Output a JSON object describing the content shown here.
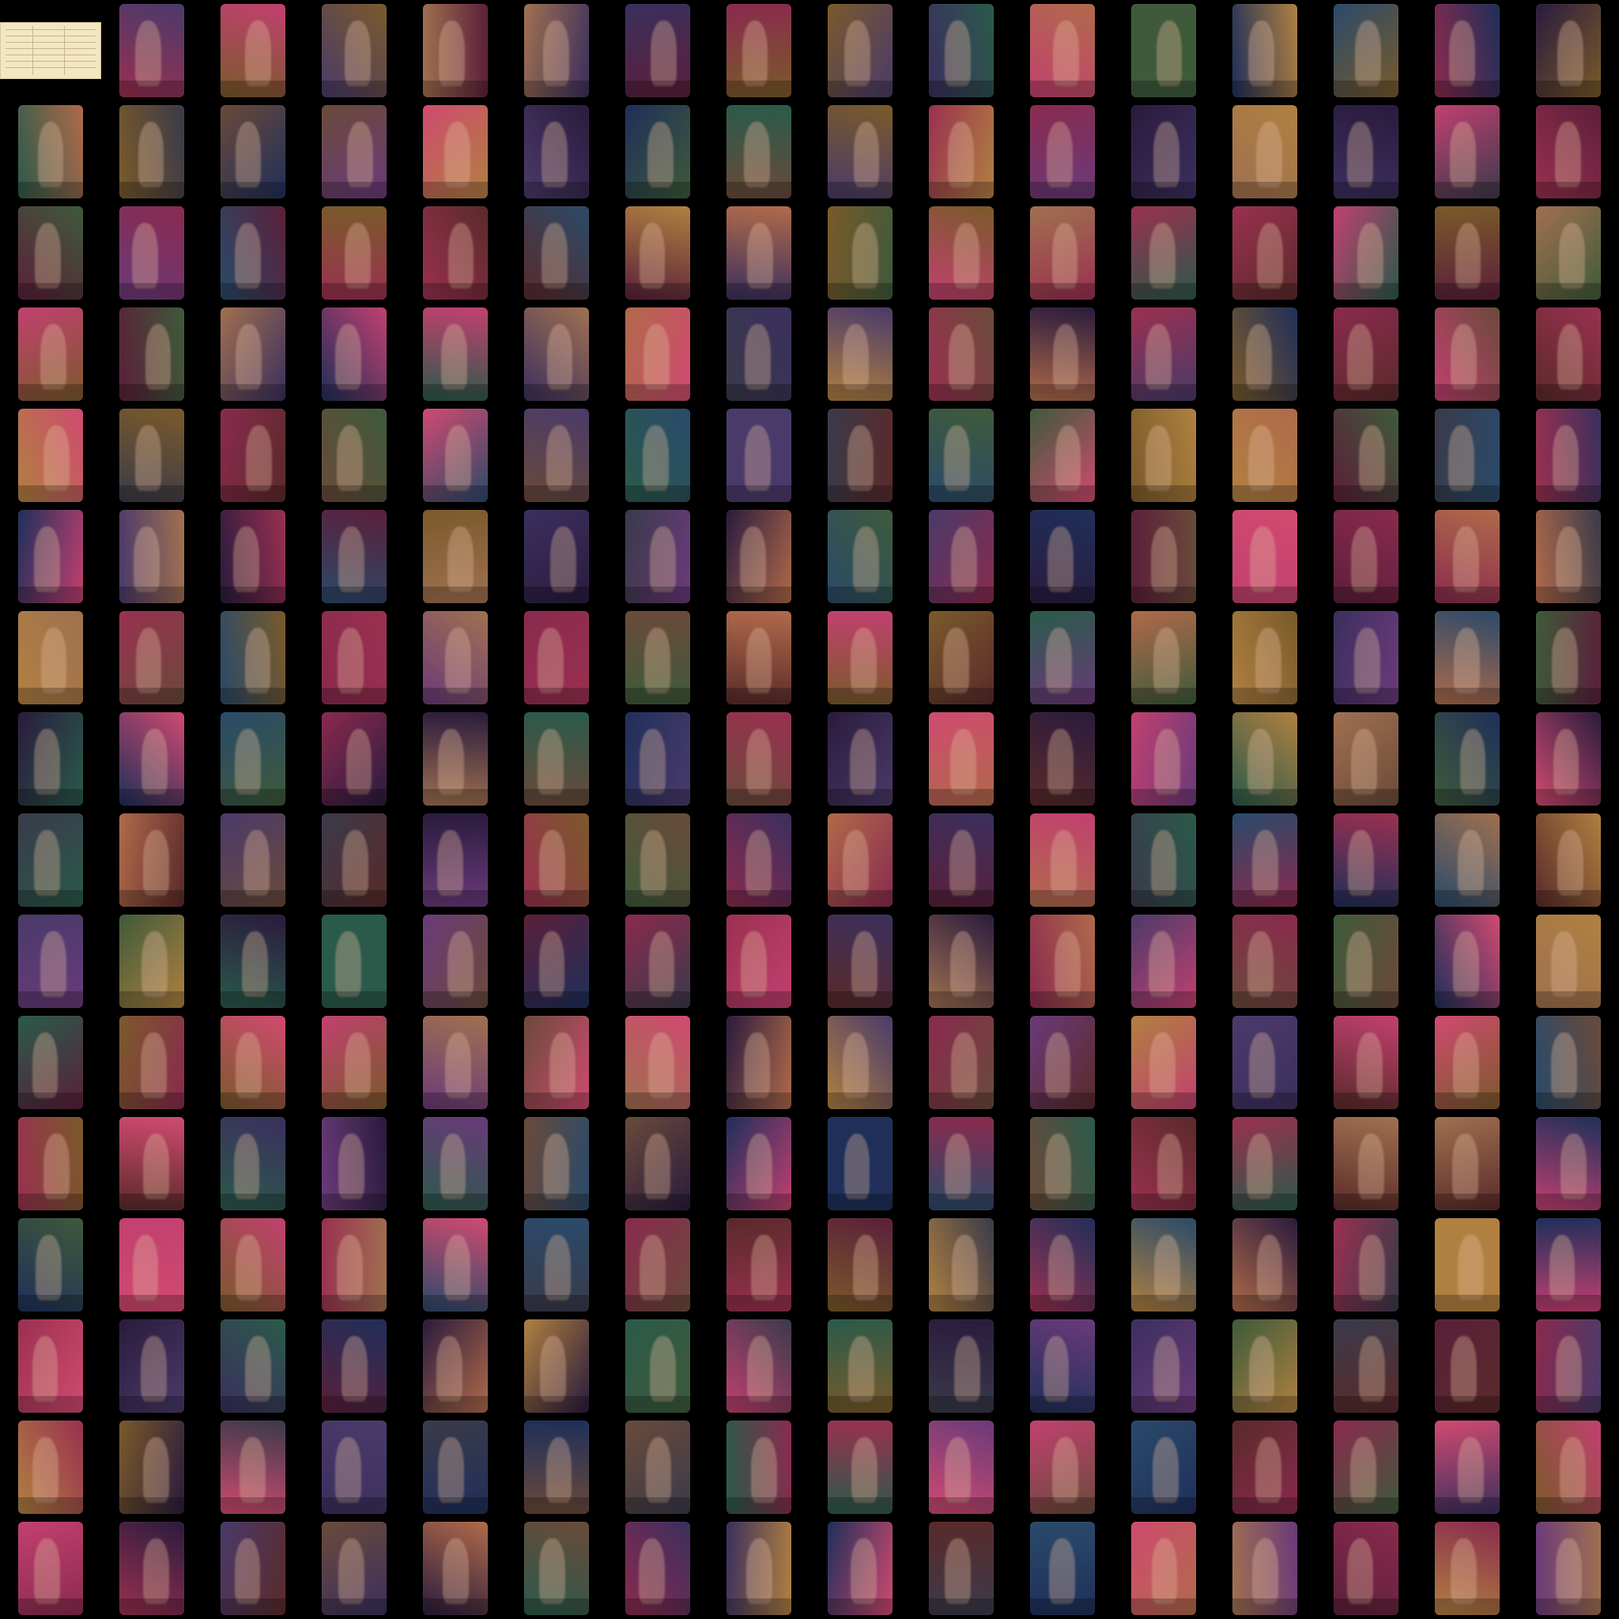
{
  "contact_sheet": {
    "background_color": "#000000",
    "rows": 16,
    "columns": 16,
    "first_item": "document-card",
    "palette": [
      "#2a1b3d",
      "#5b1f3a",
      "#8a2a4e",
      "#3b2f5e",
      "#1f2f5a",
      "#6a4a3a",
      "#b06a4a",
      "#3e5a3a",
      "#7a5a2a",
      "#9a3050",
      "#c24070",
      "#4a3a6a",
      "#2a4a6a",
      "#a07050",
      "#5a2a2a",
      "#6a3a7a",
      "#3a3a4a",
      "#b08040",
      "#d04a70",
      "#2a5a4a"
    ]
  }
}
